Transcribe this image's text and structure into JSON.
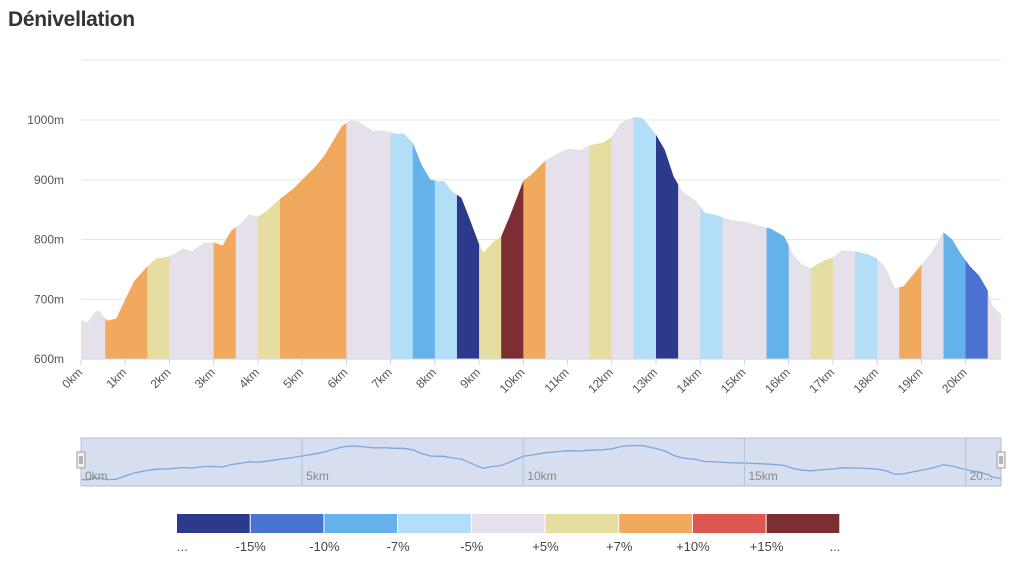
{
  "title": "Dénivellation",
  "chart_data": {
    "type": "area",
    "xunit": "km",
    "yunit": "m",
    "xlim": [
      0,
      20.8
    ],
    "ylim": [
      600,
      1000
    ],
    "y_ticks": [
      "600m",
      "700m",
      "800m",
      "900m",
      "1000m"
    ],
    "x_ticks": [
      "0km",
      "1km",
      "2km",
      "3km",
      "4km",
      "5km",
      "6km",
      "7km",
      "8km",
      "9km",
      "10km",
      "11km",
      "12km",
      "13km",
      "14km",
      "15km",
      "16km",
      "17km",
      "18km",
      "19km",
      "20km"
    ],
    "profile": [
      [
        0,
        665
      ],
      [
        0.15,
        662
      ],
      [
        0.3,
        678
      ],
      [
        0.4,
        682
      ],
      [
        0.5,
        672
      ],
      [
        0.6,
        664
      ],
      [
        0.8,
        668
      ],
      [
        1.0,
        700
      ],
      [
        1.2,
        730
      ],
      [
        1.5,
        755
      ],
      [
        1.7,
        768
      ],
      [
        2.0,
        772
      ],
      [
        2.2,
        780
      ],
      [
        2.3,
        785
      ],
      [
        2.5,
        780
      ],
      [
        2.8,
        795
      ],
      [
        3.0,
        795
      ],
      [
        3.2,
        790
      ],
      [
        3.4,
        815
      ],
      [
        3.6,
        826
      ],
      [
        3.8,
        842
      ],
      [
        4.0,
        838
      ],
      [
        4.2,
        848
      ],
      [
        4.5,
        868
      ],
      [
        4.8,
        885
      ],
      [
        5.0,
        900
      ],
      [
        5.3,
        922
      ],
      [
        5.5,
        940
      ],
      [
        5.7,
        965
      ],
      [
        5.9,
        990
      ],
      [
        6.1,
        1000
      ],
      [
        6.3,
        996
      ],
      [
        6.6,
        982
      ],
      [
        6.9,
        982
      ],
      [
        7.1,
        977
      ],
      [
        7.3,
        977
      ],
      [
        7.5,
        962
      ],
      [
        7.7,
        925
      ],
      [
        7.9,
        900
      ],
      [
        8.1,
        897
      ],
      [
        8.2,
        898
      ],
      [
        8.4,
        880
      ],
      [
        8.6,
        870
      ],
      [
        8.8,
        832
      ],
      [
        9.0,
        792
      ],
      [
        9.1,
        778
      ],
      [
        9.3,
        795
      ],
      [
        9.5,
        805
      ],
      [
        9.7,
        840
      ],
      [
        10.0,
        898
      ],
      [
        10.2,
        910
      ],
      [
        10.5,
        932
      ],
      [
        10.8,
        945
      ],
      [
        11.0,
        952
      ],
      [
        11.3,
        950
      ],
      [
        11.5,
        958
      ],
      [
        11.8,
        962
      ],
      [
        12.0,
        972
      ],
      [
        12.2,
        995
      ],
      [
        12.5,
        1005
      ],
      [
        12.7,
        1003
      ],
      [
        13.0,
        975
      ],
      [
        13.2,
        950
      ],
      [
        13.4,
        905
      ],
      [
        13.6,
        880
      ],
      [
        13.9,
        865
      ],
      [
        14.1,
        845
      ],
      [
        14.4,
        840
      ],
      [
        14.7,
        832
      ],
      [
        15.0,
        830
      ],
      [
        15.3,
        824
      ],
      [
        15.6,
        818
      ],
      [
        15.9,
        805
      ],
      [
        16.1,
        775
      ],
      [
        16.3,
        758
      ],
      [
        16.5,
        752
      ],
      [
        16.8,
        765
      ],
      [
        17.0,
        770
      ],
      [
        17.2,
        782
      ],
      [
        17.5,
        780
      ],
      [
        17.8,
        775
      ],
      [
        18.0,
        768
      ],
      [
        18.2,
        752
      ],
      [
        18.4,
        718
      ],
      [
        18.6,
        722
      ],
      [
        18.8,
        740
      ],
      [
        19.0,
        758
      ],
      [
        19.2,
        775
      ],
      [
        19.4,
        800
      ],
      [
        19.5,
        812
      ],
      [
        19.7,
        800
      ],
      [
        19.9,
        775
      ],
      [
        20.1,
        755
      ],
      [
        20.3,
        740
      ],
      [
        20.5,
        715
      ],
      [
        20.6,
        690
      ],
      [
        20.8,
        675
      ]
    ],
    "slope_segments": [
      {
        "from": 0.0,
        "to": 0.55,
        "color": "#e6e0ea"
      },
      {
        "from": 0.55,
        "to": 1.5,
        "color": "#f0a95d"
      },
      {
        "from": 1.5,
        "to": 2.0,
        "color": "#e6dda0"
      },
      {
        "from": 2.0,
        "to": 3.0,
        "color": "#e6e0ea"
      },
      {
        "from": 3.0,
        "to": 3.5,
        "color": "#f0a95d"
      },
      {
        "from": 3.5,
        "to": 4.0,
        "color": "#e6e0ea"
      },
      {
        "from": 4.0,
        "to": 4.5,
        "color": "#e6dda0"
      },
      {
        "from": 4.5,
        "to": 6.0,
        "color": "#f0a95d"
      },
      {
        "from": 6.0,
        "to": 7.0,
        "color": "#e6e0ea"
      },
      {
        "from": 7.0,
        "to": 7.5,
        "color": "#b3def7"
      },
      {
        "from": 7.5,
        "to": 8.0,
        "color": "#65b2ea"
      },
      {
        "from": 8.0,
        "to": 8.5,
        "color": "#b3def7"
      },
      {
        "from": 8.5,
        "to": 9.0,
        "color": "#2b3a8a"
      },
      {
        "from": 9.0,
        "to": 9.5,
        "color": "#e6dda0"
      },
      {
        "from": 9.5,
        "to": 10.0,
        "color": "#7b2f33"
      },
      {
        "from": 10.0,
        "to": 10.5,
        "color": "#f0a95d"
      },
      {
        "from": 10.5,
        "to": 11.5,
        "color": "#e6e0ea"
      },
      {
        "from": 11.5,
        "to": 12.0,
        "color": "#e6dda0"
      },
      {
        "from": 12.0,
        "to": 12.5,
        "color": "#e6e0ea"
      },
      {
        "from": 12.5,
        "to": 13.0,
        "color": "#b3def7"
      },
      {
        "from": 13.0,
        "to": 13.5,
        "color": "#2b3a8a"
      },
      {
        "from": 13.5,
        "to": 14.0,
        "color": "#e6e0ea"
      },
      {
        "from": 14.0,
        "to": 14.5,
        "color": "#b3def7"
      },
      {
        "from": 14.5,
        "to": 15.5,
        "color": "#e6e0ea"
      },
      {
        "from": 15.5,
        "to": 16.0,
        "color": "#65b2ea"
      },
      {
        "from": 16.0,
        "to": 16.5,
        "color": "#e6e0ea"
      },
      {
        "from": 16.5,
        "to": 17.0,
        "color": "#e6dda0"
      },
      {
        "from": 17.0,
        "to": 17.5,
        "color": "#e6e0ea"
      },
      {
        "from": 17.5,
        "to": 18.0,
        "color": "#b3def7"
      },
      {
        "from": 18.0,
        "to": 18.5,
        "color": "#e6e0ea"
      },
      {
        "from": 18.5,
        "to": 19.0,
        "color": "#f0a95d"
      },
      {
        "from": 19.0,
        "to": 19.5,
        "color": "#e6e0ea"
      },
      {
        "from": 19.5,
        "to": 20.0,
        "color": "#65b2ea"
      },
      {
        "from": 20.0,
        "to": 20.5,
        "color": "#4a72d1"
      },
      {
        "from": 20.5,
        "to": 20.8,
        "color": "#e6e0ea"
      }
    ],
    "navigator": {
      "labels": [
        "0km",
        "5km",
        "10km",
        "15km",
        "20..."
      ],
      "label_km": [
        0,
        5,
        10,
        15,
        20
      ]
    },
    "legend": {
      "colors": [
        "#2b3a8a",
        "#4a72d1",
        "#65b2ea",
        "#b3def7",
        "#e6e0ea",
        "#e6dda0",
        "#f0a95d",
        "#dd5650",
        "#7b2f33"
      ],
      "labels": [
        "...",
        "-15%",
        "-10%",
        "-7%",
        "-5%",
        "+5%",
        "+7%",
        "+10%",
        "+15%",
        "..."
      ]
    },
    "grid": true,
    "legend_position": "bottom"
  }
}
